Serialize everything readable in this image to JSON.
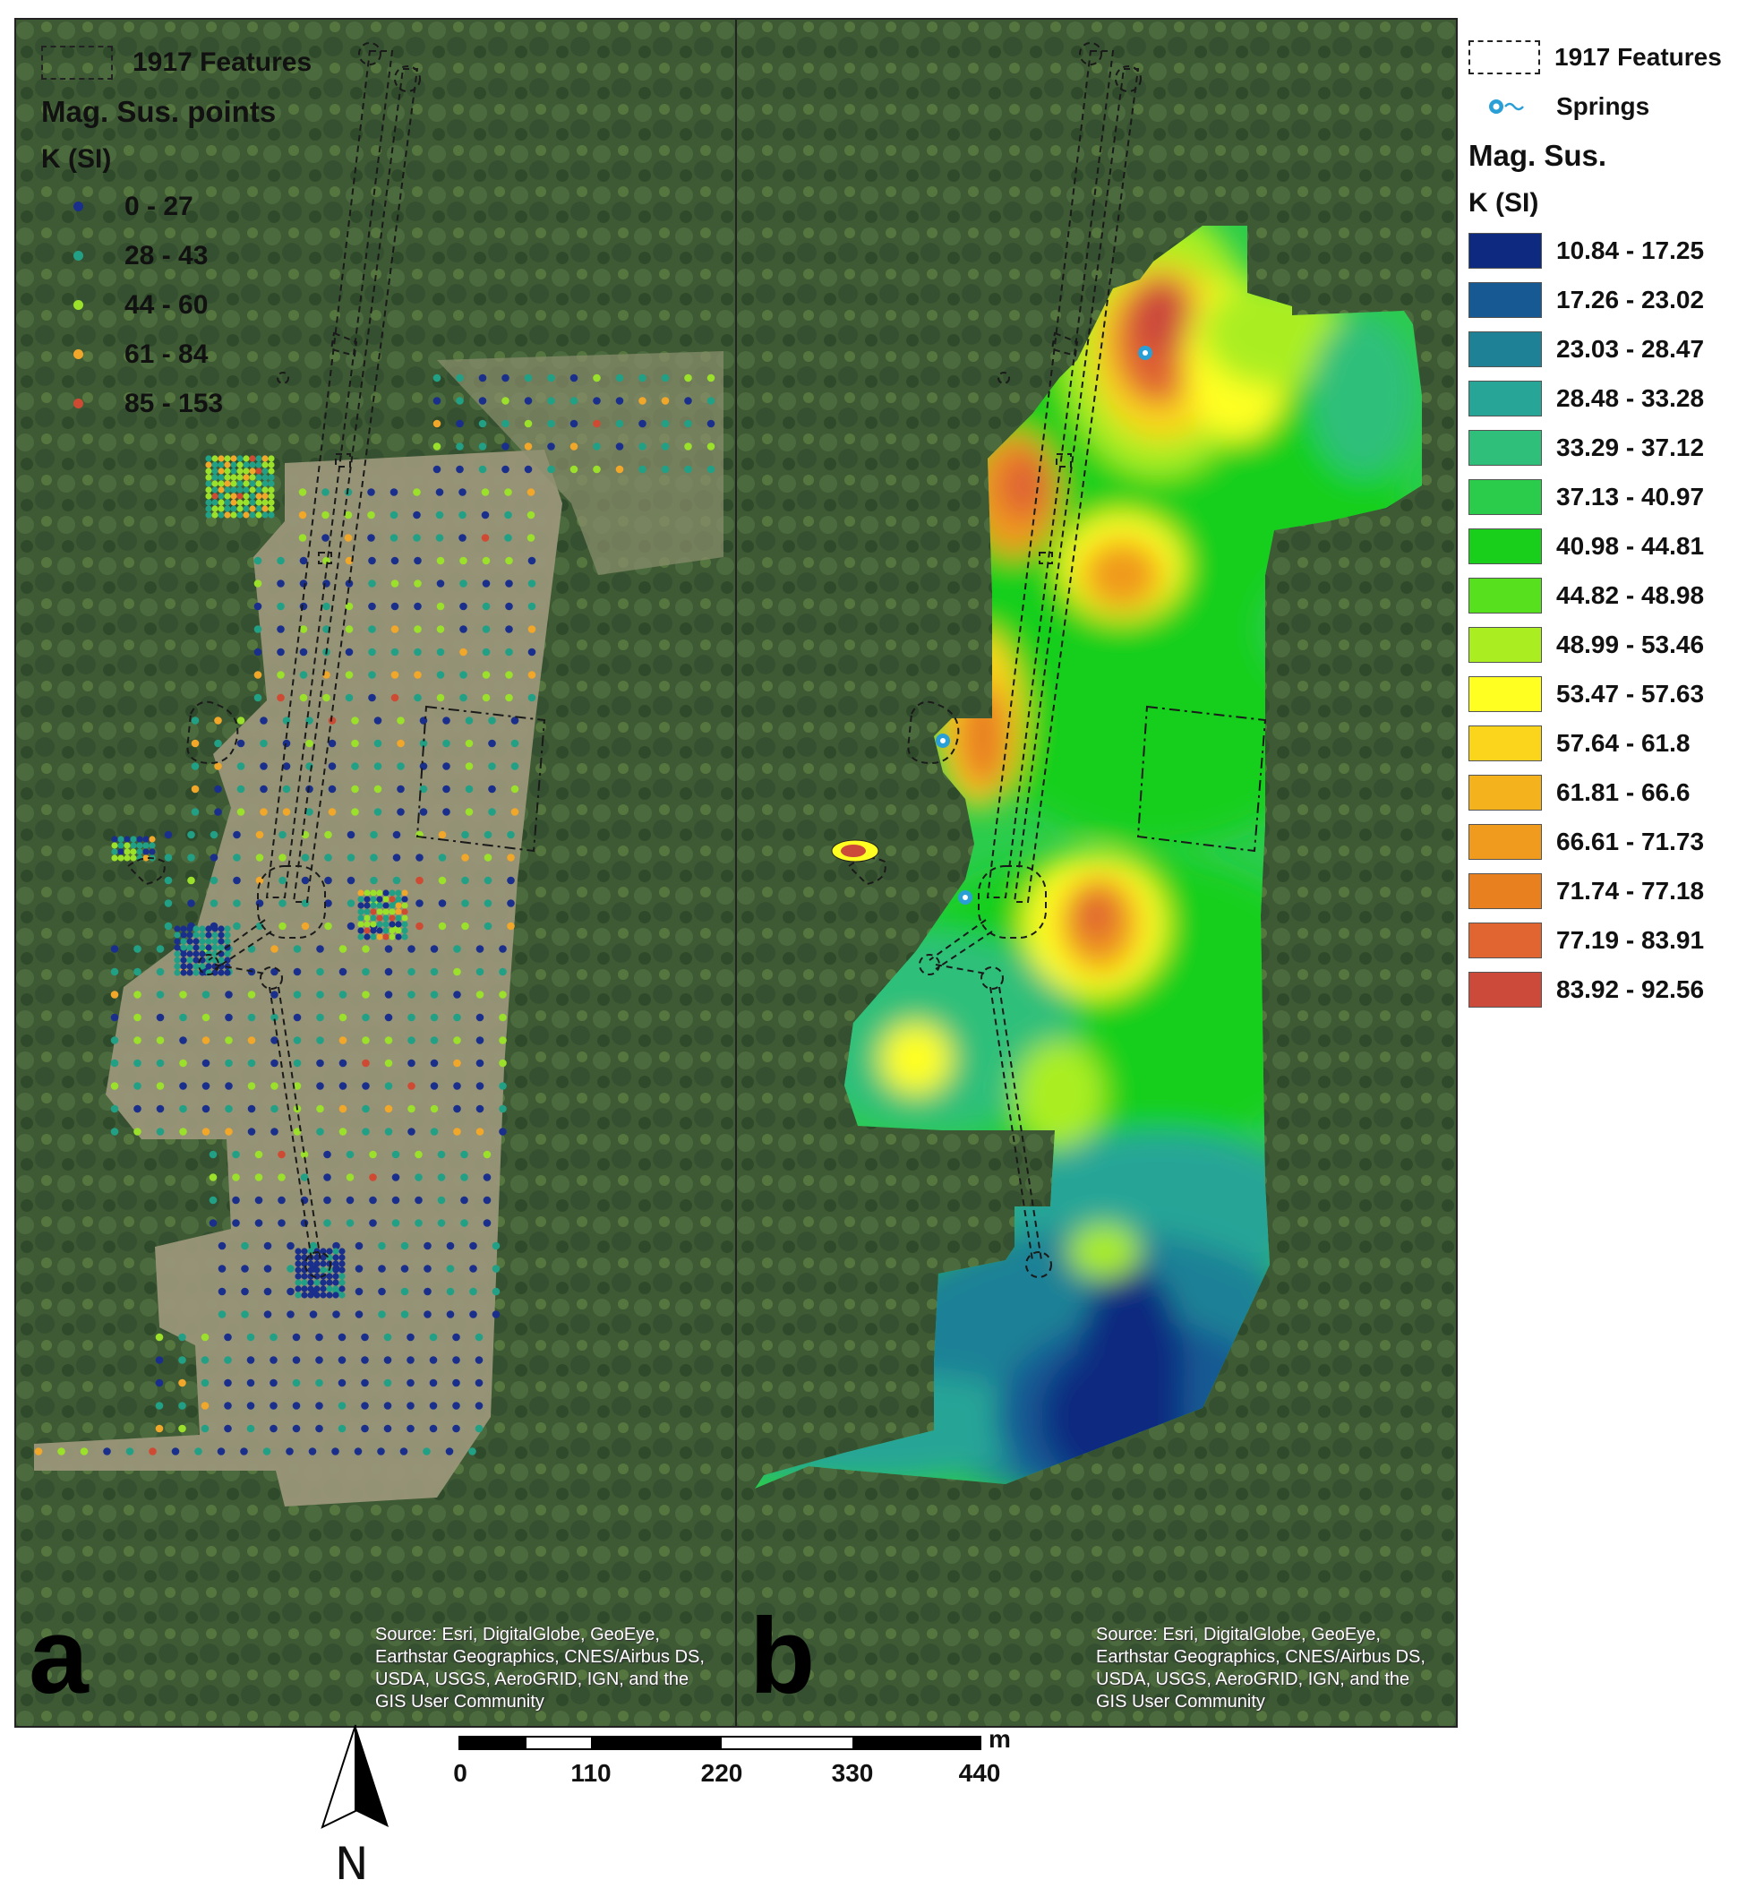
{
  "panel_a": {
    "letter": "a",
    "legend_features": "1917 Features",
    "legend_title": "Mag. Sus. points",
    "legend_unit": "K (SI)",
    "classes": [
      {
        "label": "0 - 27",
        "color": "#1a2f8c"
      },
      {
        "label": "28 - 43",
        "color": "#22a085"
      },
      {
        "label": "44 - 60",
        "color": "#9be02a"
      },
      {
        "label": "61 - 84",
        "color": "#f1a72a"
      },
      {
        "label": "85 - 153",
        "color": "#cf4a32"
      }
    ],
    "source": "Source: Esri, DigitalGlobe, GeoEye, Earthstar Geographics, CNES/Airbus DS, USDA, USGS, AeroGRID, IGN, and the GIS User Community"
  },
  "panel_b": {
    "letter": "b",
    "source": "Source: Esri, DigitalGlobe, GeoEye, Earthstar Geographics, CNES/Airbus DS, USDA, USGS, AeroGRID, IGN, and the GIS User Community"
  },
  "legend_b": {
    "features": "1917 Features",
    "springs": "Springs",
    "title": "Mag. Sus.",
    "unit": "K (SI)",
    "classes": [
      {
        "label": "10.84 - 17.25",
        "color": "#0d2a80"
      },
      {
        "label": "17.26 - 23.02",
        "color": "#175a93"
      },
      {
        "label": "23.03 - 28.47",
        "color": "#1f8196"
      },
      {
        "label": "28.48 - 33.28",
        "color": "#27a597"
      },
      {
        "label": "33.29 - 37.12",
        "color": "#2fbf7a"
      },
      {
        "label": "37.13 - 40.97",
        "color": "#2bcc4c"
      },
      {
        "label": "40.98 - 44.81",
        "color": "#19cf1c"
      },
      {
        "label": "44.82 - 48.98",
        "color": "#57e01e"
      },
      {
        "label": "48.99 - 53.46",
        "color": "#aaee22"
      },
      {
        "label": "53.47 - 57.63",
        "color": "#ffff22"
      },
      {
        "label": "57.64 - 61.8",
        "color": "#fbd51c"
      },
      {
        "label": "61.81 - 66.6",
        "color": "#f4b31c"
      },
      {
        "label": "66.61 - 71.73",
        "color": "#f09a1e"
      },
      {
        "label": "71.74 - 77.18",
        "color": "#e98020"
      },
      {
        "label": "77.19 - 83.91",
        "color": "#e06530"
      },
      {
        "label": "83.92 - 92.56",
        "color": "#cc4a3a"
      }
    ],
    "spring_color": "#2a9fd6"
  },
  "scalebar": {
    "unit": "m",
    "ticks": [
      "0",
      "110",
      "220",
      "330",
      "440"
    ]
  },
  "north_arrow": {
    "label": "N"
  },
  "colors": {
    "forest": "#3f5a35",
    "clearing": "#98957a",
    "feature_line": "#1a1a1a"
  }
}
